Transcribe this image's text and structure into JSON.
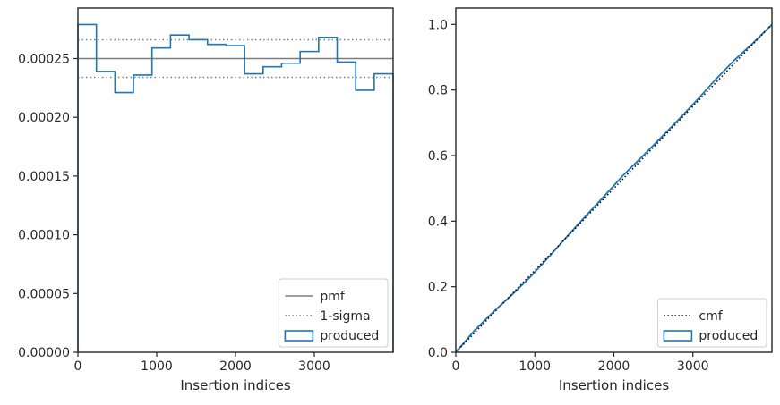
{
  "chart_data": [
    {
      "type": "histogram",
      "xlabel": "Insertion indices",
      "ylabel": "",
      "xlim": [
        0,
        4000
      ],
      "ylim": [
        0,
        0.000293
      ],
      "xticks": [
        "0",
        "1000",
        "2000",
        "3000"
      ],
      "xtick_values": [
        0,
        1000,
        2000,
        3000
      ],
      "yticks": [
        "0.00000",
        "0.00005",
        "0.00010",
        "0.00015",
        "0.00020",
        "0.00025"
      ],
      "ytick_values": [
        0,
        5e-05,
        0.0001,
        0.00015,
        0.0002,
        0.00025
      ],
      "pmf": 0.00025,
      "sigma_band": [
        0.000234,
        0.000266
      ],
      "bin_edges": [
        0,
        235,
        470,
        705,
        940,
        1175,
        1410,
        1645,
        1880,
        2115,
        2350,
        2585,
        2820,
        3055,
        3290,
        3525,
        3760,
        4000
      ],
      "produced": [
        0.000279,
        0.000239,
        0.000221,
        0.000236,
        0.000259,
        0.00027,
        0.000266,
        0.000262,
        0.000261,
        0.000237,
        0.000243,
        0.000246,
        0.000256,
        0.000268,
        0.000247,
        0.000223,
        0.000237
      ],
      "legend": {
        "placement": "lower right",
        "entries": [
          {
            "label": "pmf",
            "style": "solid-line",
            "color": "#7f7f7f"
          },
          {
            "label": "1-sigma",
            "style": "dotted-line",
            "color": "#7f7f7f"
          },
          {
            "label": "produced",
            "style": "box",
            "color": "#1f77b4"
          }
        ]
      }
    },
    {
      "type": "line",
      "xlabel": "Insertion indices",
      "ylabel": "",
      "xlim": [
        0,
        4000
      ],
      "ylim": [
        0,
        1.05
      ],
      "xticks": [
        "0",
        "1000",
        "2000",
        "3000"
      ],
      "xtick_values": [
        0,
        1000,
        2000,
        3000
      ],
      "yticks": [
        "0.0",
        "0.2",
        "0.4",
        "0.6",
        "0.8",
        "1.0"
      ],
      "ytick_values": [
        0,
        0.2,
        0.4,
        0.6,
        0.8,
        1.0
      ],
      "cmf": {
        "x": [
          0,
          4000
        ],
        "y": [
          0,
          1
        ]
      },
      "produced": {
        "x": [
          0,
          235,
          470,
          705,
          940,
          1175,
          1410,
          1645,
          1880,
          2115,
          2350,
          2585,
          2820,
          3055,
          3290,
          3525,
          3760,
          4000
        ],
        "y": [
          0,
          0.066,
          0.122,
          0.174,
          0.229,
          0.29,
          0.354,
          0.416,
          0.477,
          0.539,
          0.595,
          0.652,
          0.71,
          0.77,
          0.833,
          0.891,
          0.943,
          1.0
        ]
      },
      "legend": {
        "placement": "lower right",
        "entries": [
          {
            "label": "cmf",
            "style": "dotted-line",
            "color": "#000000"
          },
          {
            "label": "produced",
            "style": "box",
            "color": "#1f77b4"
          }
        ]
      }
    }
  ]
}
